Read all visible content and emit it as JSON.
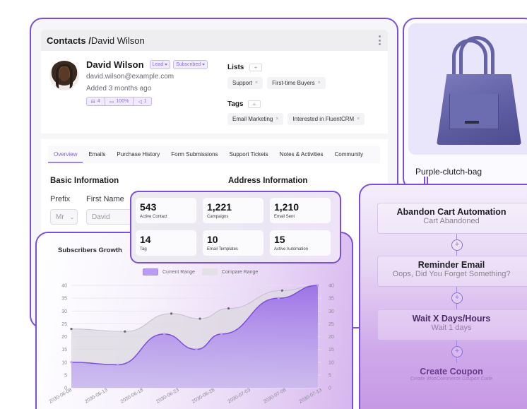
{
  "contact": {
    "breadcrumb_root": "Contacts /",
    "breadcrumb_current": "David Wilson",
    "name": "David Wilson",
    "status_badges": [
      "Lead",
      "Subscribed"
    ],
    "email": "david.wilson@example.com",
    "added": "Added 3 months ago",
    "stats": [
      {
        "icon": "message-icon",
        "value": "4"
      },
      {
        "icon": "folder-icon",
        "value": "100%"
      },
      {
        "icon": "cursor-icon",
        "value": "1"
      }
    ],
    "lists_label": "Lists",
    "lists": [
      "Support",
      "First-time Buyers"
    ],
    "tags_label": "Tags",
    "tags": [
      "Email Marketing",
      "Interested in FluentCRM"
    ],
    "add_label": "+",
    "remove_label": "×",
    "tabs": [
      "Overview",
      "Emails",
      "Purchase History",
      "Form Submissions",
      "Support Tickets",
      "Notes & Activities",
      "Community"
    ],
    "active_tab": "Overview",
    "basic_info_title": "Basic Information",
    "address_info_title": "Address Information",
    "prefix_label": "Prefix",
    "prefix_value": "Mr",
    "first_name_label": "First Name",
    "first_name_value": "David"
  },
  "product": {
    "name": "Purple-clutch-bag",
    "image_color": "#6563a6"
  },
  "stats": [
    {
      "value": "543",
      "label": "Active Contact"
    },
    {
      "value": "1,221",
      "label": "Campaigns"
    },
    {
      "value": "1,210",
      "label": "Email Sent"
    },
    {
      "value": "14",
      "label": "Tag"
    },
    {
      "value": "10",
      "label": "Email Templates"
    },
    {
      "value": "15",
      "label": "Active Automation"
    }
  ],
  "chart": {
    "dropdown_label": "Subscribers Growth",
    "chevron": "⌄"
  },
  "chart_data": {
    "type": "area",
    "title": "Subscribers Growth",
    "xlabel": "",
    "ylabel": "",
    "categories": [
      "2030-06-08",
      "2030-06-13",
      "2030-06-18",
      "2030-06-23",
      "2030-06-28",
      "2030-07-03",
      "2030-07-08",
      "2030-07-13"
    ],
    "y_ticks": [
      0,
      5,
      10,
      15,
      20,
      25,
      30,
      35,
      40
    ],
    "ylim": [
      0,
      40
    ],
    "grid": true,
    "legend_position": "top",
    "series": [
      {
        "name": "Current Range",
        "color": "#7b4fdb",
        "points": [
          [
            0,
            10
          ],
          [
            1.3,
            9
          ],
          [
            2.6,
            21
          ],
          [
            3.5,
            15
          ],
          [
            4.2,
            21
          ],
          [
            5.8,
            35
          ],
          [
            6.9,
            40
          ]
        ]
      },
      {
        "name": "Compare Range",
        "color": "#b9b3bf",
        "points": [
          [
            0,
            23
          ],
          [
            1.5,
            22
          ],
          [
            2.8,
            29
          ],
          [
            3.6,
            27
          ],
          [
            4.4,
            31
          ],
          [
            5.9,
            38
          ],
          [
            6.9,
            40
          ]
        ]
      }
    ]
  },
  "automation": {
    "steps": [
      {
        "title": "Abandon Cart Automation",
        "subtitle": "Cart Abandoned"
      },
      {
        "title": "Reminder Email",
        "subtitle": "Oops, Did You Forget Something?"
      },
      {
        "title": "Wait X Days/Hours",
        "subtitle": "Wait 1 days"
      },
      {
        "title": "Create Coupon",
        "subtitle": "Create WooCommerce Coupon Code"
      }
    ],
    "add_step_label": "+"
  },
  "colors": {
    "accent": "#7b4fdb",
    "accent_light": "#f1ecfd",
    "compare_fill": "#d9d5dd"
  }
}
